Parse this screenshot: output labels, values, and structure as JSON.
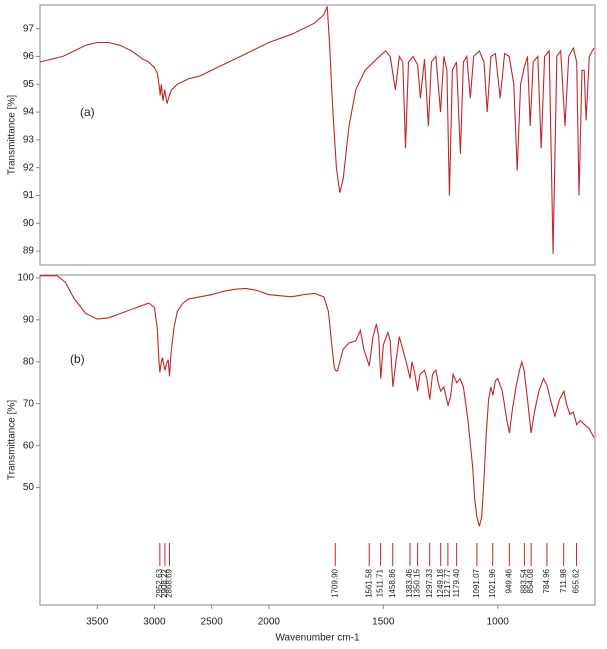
{
  "chart_data": [
    {
      "type": "line",
      "annotation": "(a)",
      "ylabel": "Transmittance [%]",
      "color": "#c0262a",
      "xlim": [
        4000,
        575
      ],
      "xscale_break": 2000,
      "ylim": [
        88.5,
        97.85
      ],
      "yticks": [
        89,
        90,
        91,
        92,
        93,
        94,
        95,
        96,
        97
      ],
      "x": [
        4000,
        3900,
        3800,
        3700,
        3600,
        3500,
        3400,
        3300,
        3200,
        3100,
        3050,
        3000,
        2975,
        2960,
        2950,
        2940,
        2925,
        2910,
        2890,
        2870,
        2850,
        2800,
        2700,
        2600,
        2500,
        2400,
        2300,
        2200,
        2100,
        2000,
        1900,
        1800,
        1760,
        1745,
        1735,
        1720,
        1705,
        1690,
        1675,
        1650,
        1620,
        1580,
        1530,
        1490,
        1470,
        1447,
        1430,
        1415,
        1403,
        1390,
        1370,
        1350,
        1338,
        1320,
        1303,
        1290,
        1270,
        1250,
        1235,
        1222,
        1211,
        1198,
        1180,
        1163,
        1150,
        1135,
        1120,
        1105,
        1080,
        1060,
        1046,
        1030,
        1010,
        989,
        970,
        950,
        930,
        915,
        900,
        885,
        870,
        858,
        845,
        825,
        810,
        795,
        775,
        758,
        742,
        725,
        706,
        690,
        670,
        655,
        645,
        632,
        622,
        614,
        600,
        580
      ],
      "values": [
        95.8,
        95.9,
        96.0,
        96.2,
        96.4,
        96.5,
        96.5,
        96.4,
        96.2,
        95.9,
        95.8,
        95.6,
        95.4,
        95.0,
        94.6,
        95.0,
        94.4,
        94.8,
        94.3,
        94.6,
        94.8,
        95.0,
        95.2,
        95.3,
        95.5,
        95.7,
        95.9,
        96.1,
        96.3,
        96.5,
        96.8,
        97.2,
        97.5,
        97.8,
        96.5,
        94,
        92,
        91.1,
        91.6,
        93.5,
        94.8,
        95.5,
        95.9,
        96.2,
        96.0,
        94.8,
        96.0,
        95.8,
        92.7,
        95.8,
        96.0,
        95.7,
        94.5,
        95.9,
        93.5,
        95.8,
        96.0,
        94.0,
        96.0,
        95.5,
        91.0,
        95.5,
        95.8,
        92.5,
        95.8,
        96.0,
        94.5,
        96.0,
        96.2,
        95.8,
        94.0,
        96.0,
        96.1,
        94.5,
        96.1,
        96.0,
        95.0,
        91.9,
        95.0,
        95.6,
        96.0,
        93.5,
        95.8,
        96.0,
        92.7,
        96.0,
        96.2,
        88.9,
        96.0,
        96.2,
        93.5,
        96.0,
        96.3,
        95.8,
        91.0,
        95.5,
        95.5,
        93.7,
        96.0,
        96.3
      ]
    },
    {
      "type": "line",
      "annotation": "(b)",
      "ylabel": "Transmittance [%]",
      "xlabel": "Wavenumber cm-1",
      "color": "#c0262a",
      "xlim": [
        4000,
        575
      ],
      "xscale_break": 2000,
      "xticks": [
        3500,
        3000,
        2500,
        2000,
        1500,
        1000
      ],
      "ylim": [
        22,
        100.7
      ],
      "yticks": [
        50,
        60,
        70,
        80,
        90,
        100
      ],
      "peak_labels": [
        2952.63,
        2908.22,
        2868.69,
        {
          "value": 1709.9,
          "label": "1709.90"
        },
        1561.58,
        1511.71,
        1458.86,
        1383.46,
        1350.15,
        1297.33,
        1249.18,
        1217.77,
        {
          "value": 1179.4,
          "label": "1179.40"
        },
        1091.07,
        1021.96,
        949.46,
        883.54,
        854.08,
        784.96,
        711.98,
        655.62
      ],
      "x": [
        4000,
        3850,
        3780,
        3700,
        3600,
        3500,
        3400,
        3300,
        3200,
        3100,
        3050,
        3000,
        2975,
        2960,
        2952,
        2940,
        2930,
        2920,
        2908,
        2895,
        2880,
        2868,
        2855,
        2830,
        2800,
        2750,
        2700,
        2600,
        2500,
        2400,
        2300,
        2200,
        2100,
        2000,
        1900,
        1850,
        1800,
        1760,
        1740,
        1725,
        1715,
        1710,
        1700,
        1690,
        1675,
        1650,
        1620,
        1600,
        1585,
        1561,
        1545,
        1530,
        1520,
        1511,
        1500,
        1480,
        1470,
        1458,
        1445,
        1430,
        1415,
        1400,
        1383,
        1375,
        1365,
        1350,
        1340,
        1320,
        1310,
        1297,
        1285,
        1270,
        1260,
        1249,
        1235,
        1217,
        1205,
        1195,
        1179,
        1165,
        1150,
        1130,
        1110,
        1100,
        1091,
        1080,
        1070,
        1060,
        1050,
        1040,
        1030,
        1021,
        1010,
        1000,
        980,
        960,
        949,
        935,
        920,
        905,
        895,
        885,
        870,
        854,
        840,
        820,
        800,
        785,
        770,
        750,
        730,
        711,
        700,
        685,
        670,
        655,
        640,
        620,
        600,
        580
      ],
      "values": [
        100.5,
        100.5,
        99,
        95,
        91.5,
        90.2,
        90.5,
        91.5,
        92.5,
        93.5,
        94.0,
        93.0,
        88,
        80,
        77.5,
        80,
        81,
        79.5,
        78,
        79.5,
        80.5,
        76.5,
        82,
        88,
        92,
        94,
        95,
        95.5,
        96.0,
        96.8,
        97.3,
        97.5,
        97.0,
        96.0,
        95.5,
        96.0,
        96.3,
        95.5,
        92,
        84,
        79,
        78,
        77.8,
        80,
        83,
        84.5,
        85.0,
        87.5,
        83,
        79,
        86,
        89,
        86,
        76,
        84,
        87,
        85,
        74,
        80,
        86,
        83,
        80,
        76,
        80,
        78,
        73,
        77,
        78,
        76,
        71,
        77,
        78,
        75,
        73,
        74,
        69.5,
        72,
        77,
        75,
        76,
        74,
        66,
        55,
        47,
        43,
        40.8,
        43,
        52,
        63,
        71,
        74,
        72,
        75.5,
        76,
        73,
        66,
        63,
        69,
        74,
        78,
        80,
        78,
        71,
        63,
        68,
        73,
        76,
        74.5,
        71,
        67,
        71,
        73,
        70,
        67.5,
        68,
        65,
        66,
        65,
        64,
        62
      ]
    }
  ]
}
